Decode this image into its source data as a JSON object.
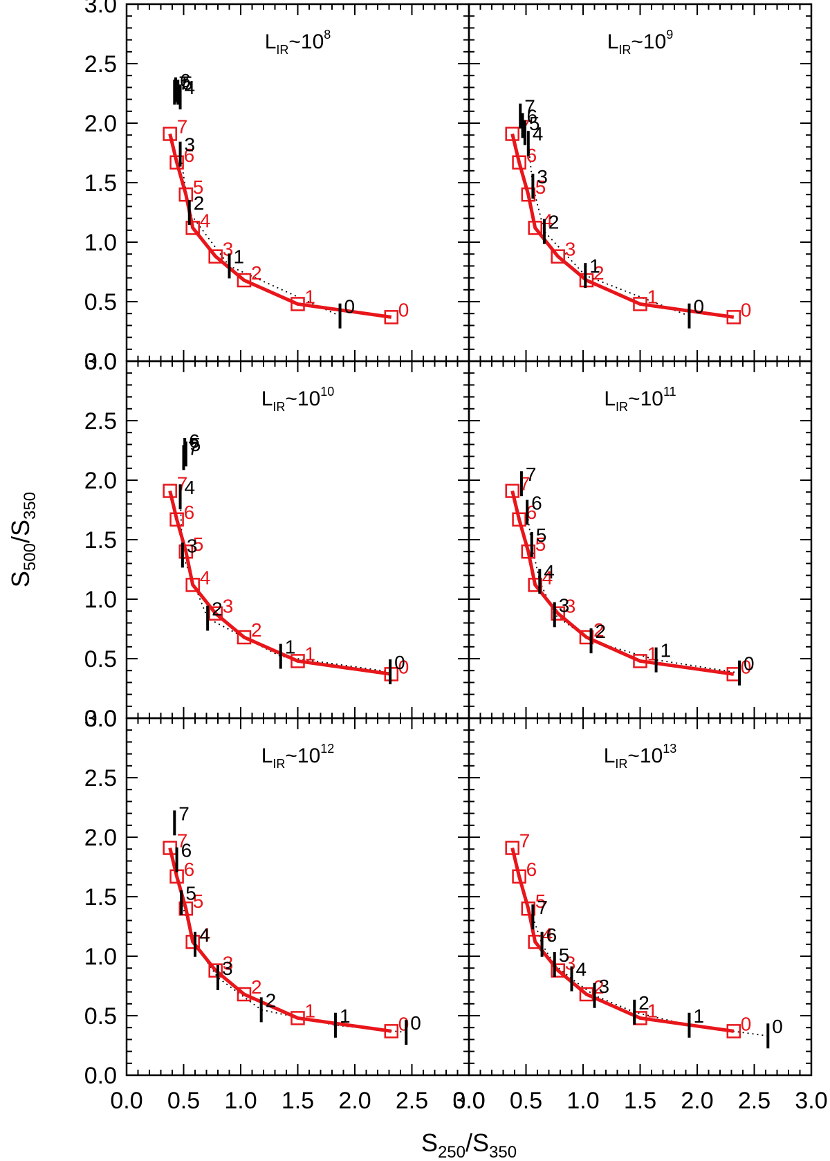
{
  "chart_data": {
    "type": "scatter",
    "layout": "3x2 grid of panels",
    "xlabel": {
      "main": "S",
      "sub": "250",
      "rest": "/S",
      "sub2": "350"
    },
    "ylabel": {
      "main": "S",
      "sub": "500",
      "rest": "/S",
      "sub2": "350"
    },
    "xlim": [
      0.0,
      3.0
    ],
    "ylim": [
      0.0,
      3.0
    ],
    "x_ticks": [
      "0.0",
      "0.5",
      "1.0",
      "1.5",
      "2.0",
      "2.5",
      "3.0"
    ],
    "y_ticks": [
      "0.0",
      "0.5",
      "1.0",
      "1.5",
      "2.0",
      "2.5",
      "3.0"
    ],
    "colors": {
      "model": "#e8161b",
      "data": "#000000",
      "dotted": "#000000"
    },
    "model_curve": {
      "x": [
        2.32,
        1.5,
        1.03,
        0.78,
        0.58,
        0.52,
        0.44,
        0.38
      ],
      "y": [
        0.37,
        0.48,
        0.68,
        0.88,
        1.12,
        1.4,
        1.67,
        1.91
      ],
      "labels": [
        "0",
        "1",
        "2",
        "3",
        "4",
        "5",
        "6",
        "7"
      ]
    },
    "panels": [
      {
        "title": {
          "main": "L",
          "sub": "IR",
          "rest": "~10",
          "sup": "8"
        },
        "points": [
          {
            "x": 1.87,
            "y": 0.38,
            "label": "0"
          },
          {
            "x": 0.9,
            "y": 0.8,
            "label": "1"
          },
          {
            "x": 0.55,
            "y": 1.25,
            "label": "2"
          },
          {
            "x": 0.47,
            "y": 1.74,
            "label": "3"
          },
          {
            "x": 0.47,
            "y": 2.22,
            "label": "4"
          },
          {
            "x": 0.45,
            "y": 2.26,
            "label": "5"
          },
          {
            "x": 0.43,
            "y": 2.28,
            "label": "6"
          },
          {
            "x": 0.42,
            "y": 2.26,
            "label": "7"
          }
        ],
        "dotted": {
          "x": [
            1.87,
            0.9,
            0.55,
            0.47
          ],
          "y": [
            0.38,
            0.8,
            1.25,
            1.74
          ]
        }
      },
      {
        "title": {
          "main": "L",
          "sub": "IR",
          "rest": "~10",
          "sup": "9"
        },
        "points": [
          {
            "x": 1.93,
            "y": 0.38,
            "label": "0"
          },
          {
            "x": 1.02,
            "y": 0.72,
            "label": "1"
          },
          {
            "x": 0.66,
            "y": 1.09,
            "label": "2"
          },
          {
            "x": 0.56,
            "y": 1.47,
            "label": "3"
          },
          {
            "x": 0.52,
            "y": 1.83,
            "label": "4"
          },
          {
            "x": 0.49,
            "y": 1.92,
            "label": "5"
          },
          {
            "x": 0.47,
            "y": 1.98,
            "label": "6"
          },
          {
            "x": 0.45,
            "y": 2.06,
            "label": "7"
          }
        ],
        "dotted": {
          "x": [
            1.93,
            1.02,
            0.66,
            0.56,
            0.52
          ],
          "y": [
            0.38,
            0.72,
            1.09,
            1.47,
            1.83
          ]
        }
      },
      {
        "title": {
          "main": "L",
          "sub": "IR",
          "rest": "~10",
          "sup": "10"
        },
        "points": [
          {
            "x": 2.31,
            "y": 0.39,
            "label": "0"
          },
          {
            "x": 1.35,
            "y": 0.52,
            "label": "1"
          },
          {
            "x": 0.71,
            "y": 0.84,
            "label": "2"
          },
          {
            "x": 0.49,
            "y": 1.37,
            "label": "3"
          },
          {
            "x": 0.47,
            "y": 1.86,
            "label": "4"
          },
          {
            "x": 0.52,
            "y": 2.22,
            "label": "5"
          },
          {
            "x": 0.51,
            "y": 2.25,
            "label": "6"
          },
          {
            "x": 0.5,
            "y": 2.19,
            "label": "7"
          }
        ],
        "dotted": {
          "x": [
            2.31,
            1.35,
            0.71,
            0.49,
            0.47
          ],
          "y": [
            0.39,
            0.52,
            0.84,
            1.37,
            1.86
          ]
        }
      },
      {
        "title": {
          "main": "L",
          "sub": "IR",
          "rest": "~10",
          "sup": "11"
        },
        "points": [
          {
            "x": 2.37,
            "y": 0.38,
            "label": "0"
          },
          {
            "x": 1.64,
            "y": 0.49,
            "label": "1"
          },
          {
            "x": 1.07,
            "y": 0.65,
            "label": "2"
          },
          {
            "x": 0.75,
            "y": 0.87,
            "label": "3"
          },
          {
            "x": 0.62,
            "y": 1.15,
            "label": "4"
          },
          {
            "x": 0.55,
            "y": 1.46,
            "label": "5"
          },
          {
            "x": 0.51,
            "y": 1.73,
            "label": "6"
          },
          {
            "x": 0.46,
            "y": 1.97,
            "label": "7"
          }
        ],
        "dotted": {
          "x": [
            2.37,
            1.64,
            1.07,
            0.75,
            0.62,
            0.55,
            0.51
          ],
          "y": [
            0.38,
            0.49,
            0.65,
            0.87,
            1.15,
            1.46,
            1.73
          ]
        }
      },
      {
        "title": {
          "main": "L",
          "sub": "IR",
          "rest": "~10",
          "sup": "12"
        },
        "points": [
          {
            "x": 2.45,
            "y": 0.36,
            "label": "0"
          },
          {
            "x": 1.83,
            "y": 0.42,
            "label": "1"
          },
          {
            "x": 1.18,
            "y": 0.55,
            "label": "2"
          },
          {
            "x": 0.8,
            "y": 0.82,
            "label": "3"
          },
          {
            "x": 0.6,
            "y": 1.1,
            "label": "4"
          },
          {
            "x": 0.48,
            "y": 1.45,
            "label": "5"
          },
          {
            "x": 0.44,
            "y": 1.81,
            "label": "6"
          },
          {
            "x": 0.42,
            "y": 2.12,
            "label": "7"
          }
        ],
        "dotted": {
          "x": [
            2.45,
            1.83,
            1.18,
            0.8,
            0.6,
            0.48
          ],
          "y": [
            0.36,
            0.42,
            0.55,
            0.82,
            1.1,
            1.45
          ]
        }
      },
      {
        "title": {
          "main": "L",
          "sub": "IR",
          "rest": "~10",
          "sup": "13"
        },
        "points": [
          {
            "x": 2.62,
            "y": 0.33,
            "label": "0"
          },
          {
            "x": 1.93,
            "y": 0.42,
            "label": "1"
          },
          {
            "x": 1.45,
            "y": 0.53,
            "label": "2"
          },
          {
            "x": 1.1,
            "y": 0.67,
            "label": "3"
          },
          {
            "x": 0.9,
            "y": 0.81,
            "label": "4"
          },
          {
            "x": 0.75,
            "y": 0.93,
            "label": "5"
          },
          {
            "x": 0.64,
            "y": 1.1,
            "label": "6"
          },
          {
            "x": 0.56,
            "y": 1.33,
            "label": "7"
          }
        ],
        "dotted": {
          "x": [
            2.62,
            1.93,
            1.45,
            1.1,
            0.9,
            0.75,
            0.64,
            0.56
          ],
          "y": [
            0.33,
            0.42,
            0.53,
            0.67,
            0.81,
            0.93,
            1.1,
            1.33
          ]
        }
      }
    ]
  }
}
